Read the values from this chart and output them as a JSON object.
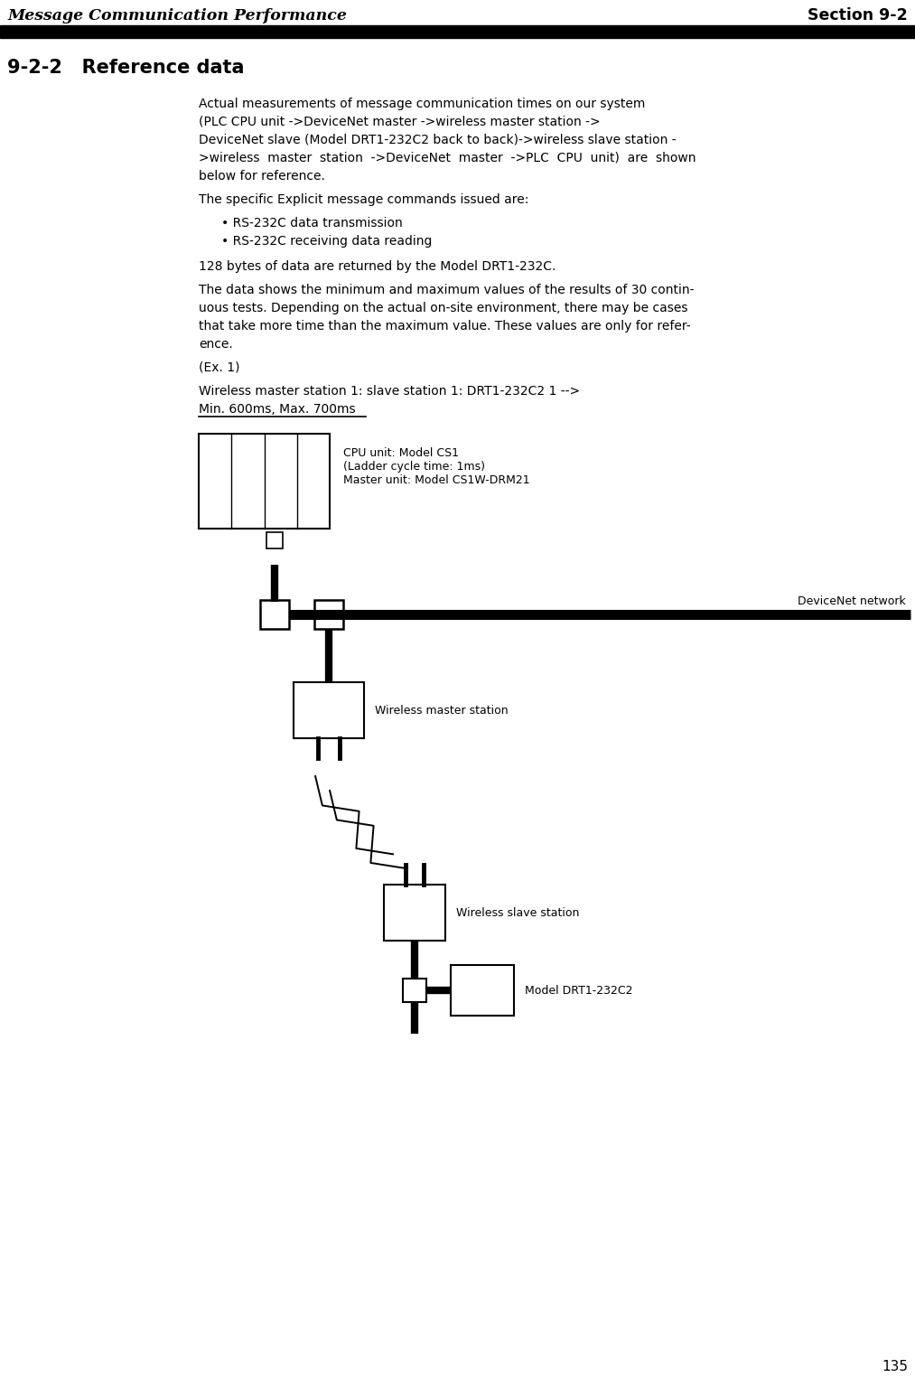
{
  "header_left": "Message Communication Performance",
  "header_right": "Section 9-2",
  "section_title": "9-2-2   Reference data",
  "cpu_label": "CPU unit: Model CS1\n(Ladder cycle time: 1ms)\nMaster unit: Model CS1W-DRM21",
  "dn_label": "DeviceNet network",
  "wm_label": "Wireless master station",
  "ws_label": "Wireless slave station",
  "drt_label": "Model DRT1-232C2",
  "underline_text": "Min. 600ms, Max. 700ms",
  "page_number": "135",
  "bg_color": "#ffffff",
  "text_color": "#000000"
}
